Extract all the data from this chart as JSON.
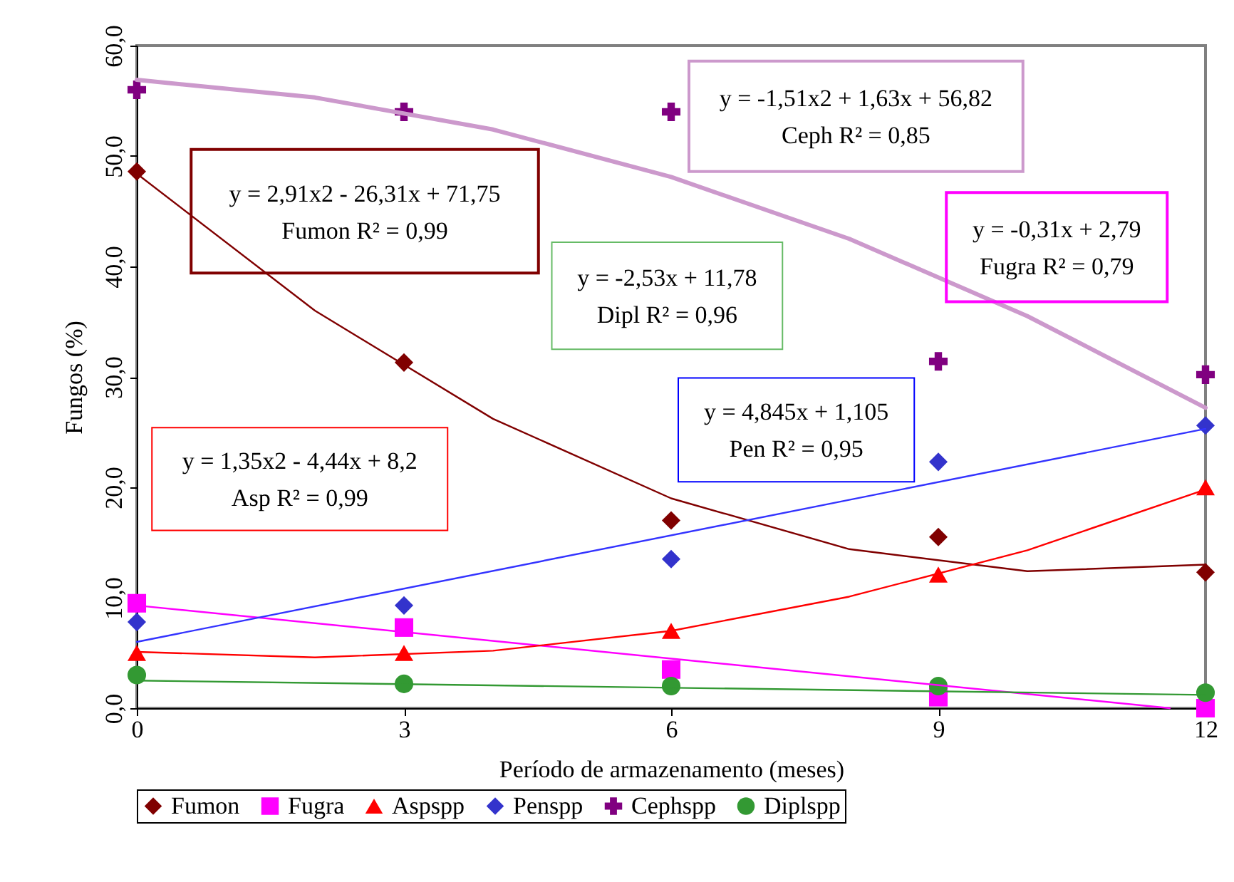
{
  "chart_data": {
    "type": "scatter",
    "xlabel": "Período de armazenamento   (meses)",
    "ylabel": "Fungos (%)",
    "xlim": [
      0,
      12
    ],
    "xticks": [
      0,
      3,
      6,
      9,
      12
    ],
    "ylim": [
      0,
      60
    ],
    "yticks": [
      {
        "value": 0,
        "label": "0,0"
      },
      {
        "value": 10,
        "label": "10,0"
      },
      {
        "value": 20,
        "label": "20,0"
      },
      {
        "value": 30,
        "label": "30,0"
      },
      {
        "value": 40,
        "label": "40,0"
      },
      {
        "value": 50,
        "label": "50,0"
      },
      {
        "value": 60,
        "label": "60,0"
      }
    ],
    "grid": false,
    "legend": "bottom",
    "x": [
      0,
      3,
      6,
      9,
      12
    ],
    "series": [
      {
        "name": "Fumon",
        "color": "#800000",
        "marker": "diamond",
        "values": [
          48.6,
          31.3,
          17.0,
          15.5,
          12.3
        ]
      },
      {
        "name": "Fugra",
        "color": "#ff00ff",
        "marker": "square",
        "values": [
          9.5,
          7.3,
          3.5,
          1.0,
          0.0
        ]
      },
      {
        "name": "Aspspp",
        "color": "#ff0000",
        "marker": "triangle",
        "values": [
          5.0,
          5.0,
          7.0,
          12.1,
          20.0
        ]
      },
      {
        "name": "Penspp",
        "color": "#3333cc",
        "marker": "diamond",
        "values": [
          7.8,
          9.3,
          13.5,
          22.3,
          25.6
        ]
      },
      {
        "name": "Cephspp",
        "color": "#800080",
        "marker": "cross",
        "values": [
          56.0,
          54.0,
          54.0,
          31.4,
          30.2
        ]
      },
      {
        "name": "Diplspp",
        "color": "#339933",
        "marker": "circle",
        "values": [
          3.0,
          2.2,
          2.0,
          2.0,
          1.4
        ]
      },
      {
        "type": "line",
        "color": "#800000",
        "marker": "none",
        "x": [
          0,
          2,
          4,
          6,
          8,
          10,
          12
        ],
        "values": [
          48.4,
          36.0,
          26.2,
          19.0,
          14.4,
          12.4,
          13.0
        ]
      },
      {
        "type": "line",
        "color": "#ff00ff",
        "marker": "none",
        "x": [
          0,
          11.6
        ],
        "values": [
          9.3,
          0.0
        ]
      },
      {
        "type": "line",
        "color": "#ff0000",
        "marker": "none",
        "x": [
          0,
          2,
          4,
          6,
          8,
          10,
          12
        ],
        "values": [
          5.1,
          4.6,
          5.2,
          7.0,
          10.1,
          14.3,
          19.8
        ]
      },
      {
        "type": "line",
        "color": "#3333ff",
        "marker": "none",
        "x": [
          0,
          12
        ],
        "values": [
          6.0,
          25.3
        ]
      },
      {
        "type": "line",
        "color": "#cc99cc",
        "marker": "none",
        "x": [
          0,
          2,
          4,
          6,
          8,
          10,
          12
        ],
        "values": [
          56.9,
          55.3,
          52.4,
          48.1,
          42.5,
          35.5,
          27.2
        ]
      },
      {
        "type": "line",
        "color": "#339933",
        "marker": "none",
        "x": [
          0,
          12
        ],
        "values": [
          2.5,
          1.2
        ]
      }
    ],
    "annotations": [
      "y = -1,51x2 + 1,63x + 56,82",
      "Ceph R² = 0,85",
      "y = 2,91x2 - 26,31x + 71,75",
      "Fumon R² = 0,99",
      "y = -0,31x + 2,79",
      "Fugra R² = 0,79",
      "y = -2,53x + 11,78",
      "Dipl R² = 0,96",
      "y = 4,845x + 1,105",
      "Pen R² = 0,95",
      "y = 1,35x2 - 4,44x + 8,2",
      "Asp R² = 0,99"
    ]
  }
}
